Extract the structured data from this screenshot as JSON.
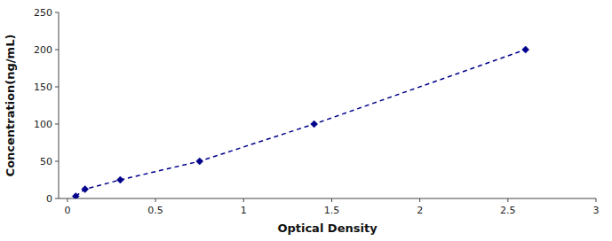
{
  "chart_data": {
    "type": "line",
    "xlabel": "Optical Density",
    "ylabel": "Concentration(ng/mL)",
    "x": [
      0.047,
      0.1,
      0.3,
      0.75,
      1.4,
      2.6
    ],
    "values": [
      3.0,
      12.5,
      25.0,
      50.0,
      100.0,
      200.0
    ],
    "color": "#00008B",
    "marker": "diamond",
    "line_style": "dashed",
    "xlim": [
      -0.05,
      3.0
    ],
    "ylim": [
      0,
      250
    ],
    "xticks": [
      0,
      0.5,
      1,
      1.5,
      2,
      2.5,
      3
    ],
    "yticks": [
      0,
      50,
      100,
      150,
      200,
      250
    ],
    "grid": false
  }
}
